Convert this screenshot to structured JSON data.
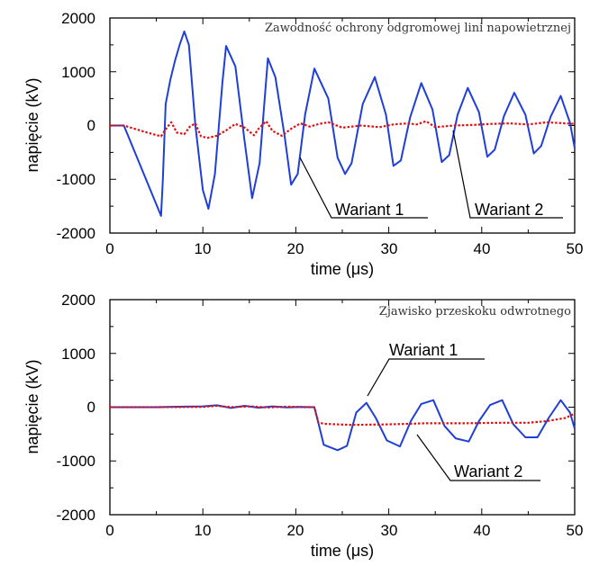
{
  "chart_data": [
    {
      "type": "line",
      "title": "",
      "annotation": "Zawodność ochrony odgromowej lini napowietrznej",
      "xlabel": "time (μs)",
      "ylabel": "napięcie (kV)",
      "xlim": [
        0,
        50
      ],
      "ylim": [
        -2000,
        2000
      ],
      "xticks": [
        "0",
        "10",
        "20",
        "30",
        "40",
        "50"
      ],
      "yticks": [
        "2000",
        "1000",
        "0",
        "-1000",
        "-2000"
      ],
      "grid": false,
      "series": [
        {
          "name": "Wariant 1",
          "color": "#1f3fd8",
          "style": "solid",
          "x": [
            0,
            1.5,
            5.5,
            5.7,
            6.0,
            6.5,
            7.0,
            7.5,
            8.0,
            8.5,
            9.2,
            10.0,
            10.6,
            11.3,
            12.1,
            12.5,
            13.5,
            14.5,
            15.3,
            16.1,
            17.0,
            17.8,
            18.8,
            19.5,
            20.2,
            21.0,
            22.0,
            23.5,
            24.5,
            25.3,
            26.0,
            27.2,
            28.5,
            29.7,
            30.5,
            31.3,
            32.3,
            33.5,
            34.7,
            35.7,
            36.5,
            37.4,
            38.5,
            39.7,
            40.6,
            41.4,
            42.4,
            43.5,
            44.7,
            45.6,
            46.4,
            47.4,
            48.5,
            49.5,
            50
          ],
          "y": [
            0,
            0,
            -1680,
            -1000,
            400,
            850,
            1200,
            1500,
            1750,
            1500,
            0,
            -1200,
            -1550,
            -900,
            800,
            1480,
            1100,
            -300,
            -1350,
            -700,
            1250,
            900,
            -200,
            -1100,
            -900,
            200,
            1060,
            500,
            -600,
            -900,
            -700,
            400,
            900,
            200,
            -750,
            -650,
            150,
            790,
            300,
            -680,
            -550,
            200,
            700,
            250,
            -580,
            -450,
            180,
            610,
            200,
            -520,
            -380,
            160,
            550,
            50,
            -420
          ]
        },
        {
          "name": "Wariant 2",
          "color": "#e01010",
          "style": "dotted",
          "x": [
            0,
            1.5,
            4,
            5.5,
            6.0,
            6.6,
            7.2,
            8.0,
            8.6,
            9.2,
            9.8,
            10.5,
            11.5,
            12.5,
            13.5,
            14.5,
            15.5,
            16.0,
            16.8,
            17.5,
            18.5,
            19.5,
            20.5,
            21.5,
            22.5,
            23.5,
            25,
            27,
            29,
            30.5,
            32,
            33,
            34,
            35,
            37,
            39,
            41,
            43,
            45,
            47,
            49,
            50
          ],
          "y": [
            0,
            0,
            -130,
            -200,
            -70,
            60,
            -130,
            -160,
            -20,
            40,
            -200,
            -230,
            -190,
            -90,
            30,
            -40,
            -180,
            -60,
            80,
            -100,
            -190,
            -60,
            40,
            -20,
            30,
            60,
            -40,
            0,
            -30,
            20,
            40,
            20,
            80,
            -30,
            0,
            10,
            30,
            40,
            20,
            60,
            40,
            30
          ]
        }
      ],
      "callouts": [
        {
          "text": "Wariant 1",
          "series": "Wariant 1"
        },
        {
          "text": "Wariant 2",
          "series": "Wariant 2"
        }
      ]
    },
    {
      "type": "line",
      "title": "",
      "annotation": "Zjawisko przeskoku odwrotnego",
      "xlabel": "time (μs)",
      "ylabel": "napięcie (kV)",
      "xlim": [
        0,
        50
      ],
      "ylim": [
        -2000,
        2000
      ],
      "xticks": [
        "0",
        "10",
        "20",
        "30",
        "40",
        "50"
      ],
      "yticks": [
        "2000",
        "1000",
        "0",
        "-1000",
        "-2000"
      ],
      "grid": false,
      "series": [
        {
          "name": "Wariant 1",
          "color": "#1f3fd8",
          "style": "solid",
          "x": [
            0,
            5,
            8,
            10,
            11.5,
            13,
            14.5,
            16,
            17.5,
            19,
            20.5,
            22,
            22.3,
            23.0,
            24.5,
            25.5,
            26.5,
            27.6,
            28.6,
            29.8,
            31.2,
            32.4,
            33.5,
            34.8,
            36.0,
            37.2,
            38.6,
            39.7,
            40.9,
            42.2,
            43.4,
            44.7,
            46.0,
            47.2,
            48.5,
            49.5,
            50
          ],
          "y": [
            0,
            0,
            10,
            15,
            35,
            -15,
            25,
            -10,
            15,
            -5,
            5,
            0,
            -200,
            -700,
            -800,
            -720,
            -100,
            80,
            -200,
            -620,
            -730,
            -250,
            60,
            130,
            -350,
            -580,
            -640,
            -260,
            40,
            130,
            -320,
            -560,
            -560,
            -200,
            130,
            -100,
            -400
          ]
        },
        {
          "name": "Wariant 2",
          "color": "#e01010",
          "style": "dotted",
          "x": [
            0,
            5,
            10,
            11.5,
            13,
            15,
            17,
            19,
            21,
            22,
            22.4,
            23,
            26,
            30,
            34,
            38,
            42,
            45,
            47,
            49,
            50
          ],
          "y": [
            0,
            0,
            5,
            25,
            0,
            15,
            -5,
            10,
            0,
            0,
            -280,
            -310,
            -330,
            -320,
            -300,
            -300,
            -290,
            -290,
            -260,
            -200,
            -120
          ]
        }
      ],
      "callouts": [
        {
          "text": "Wariant 1",
          "series": "Wariant 1"
        },
        {
          "text": "Wariant 2",
          "series": "Wariant 2"
        }
      ]
    }
  ]
}
